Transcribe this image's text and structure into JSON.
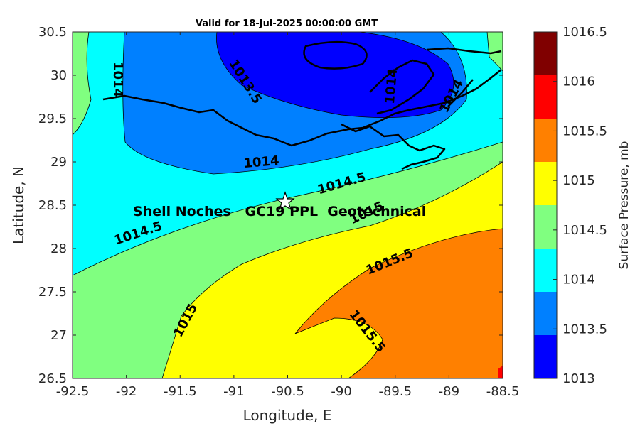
{
  "map": {
    "title": "Valid for 18-Jul-2025 00:00:00 GMT",
    "xlabel": "Longitude, E",
    "ylabel": "Latitude, N",
    "x_ticks": [
      "-92.5",
      "-92",
      "-91.5",
      "-91",
      "-90.5",
      "-90",
      "-89.5",
      "-89",
      "-88.5"
    ],
    "y_ticks": [
      "30.5",
      "30",
      "29.5",
      "29",
      "28.5",
      "28",
      "27.5",
      "27",
      "26.5"
    ],
    "site_label": "Shell Noches   GC19 PPL  Geotechnical",
    "site_marker": "star-marker",
    "contour_labels": [
      "1014",
      "1013.5",
      "1014",
      "1014",
      "1014",
      "1014.5",
      "1014.5",
      "1015",
      "1015",
      "1015.5",
      "1015.5"
    ]
  },
  "colorbar": {
    "title": "Surface Pressure, mb",
    "levels": [
      "1016.5",
      "1016",
      "1015.5",
      "1015",
      "1014.5",
      "1014",
      "1013.5",
      "1013"
    ],
    "colors": [
      "#800000",
      "#ff0000",
      "#ff8000",
      "#ffff00",
      "#80ff80",
      "#00ffff",
      "#0080ff",
      "#0000ff"
    ]
  },
  "chart_data": {
    "type": "heatmap",
    "title": "Valid for 18-Jul-2025 00:00:00 GMT",
    "xlabel": "Longitude, E",
    "ylabel": "Latitude, N",
    "xlim": [
      -92.5,
      -88.5
    ],
    "ylim": [
      26.5,
      30.5
    ],
    "colorbar_label": "Surface Pressure, mb",
    "colorbar_range": [
      1013,
      1016.5
    ],
    "contour_levels": [
      1013.5,
      1014,
      1014.5,
      1015,
      1015.5
    ],
    "site": {
      "name": "Shell Noches   GC19 PPL  Geotechnical",
      "lon": -90.52,
      "lat": 28.55
    }
  }
}
